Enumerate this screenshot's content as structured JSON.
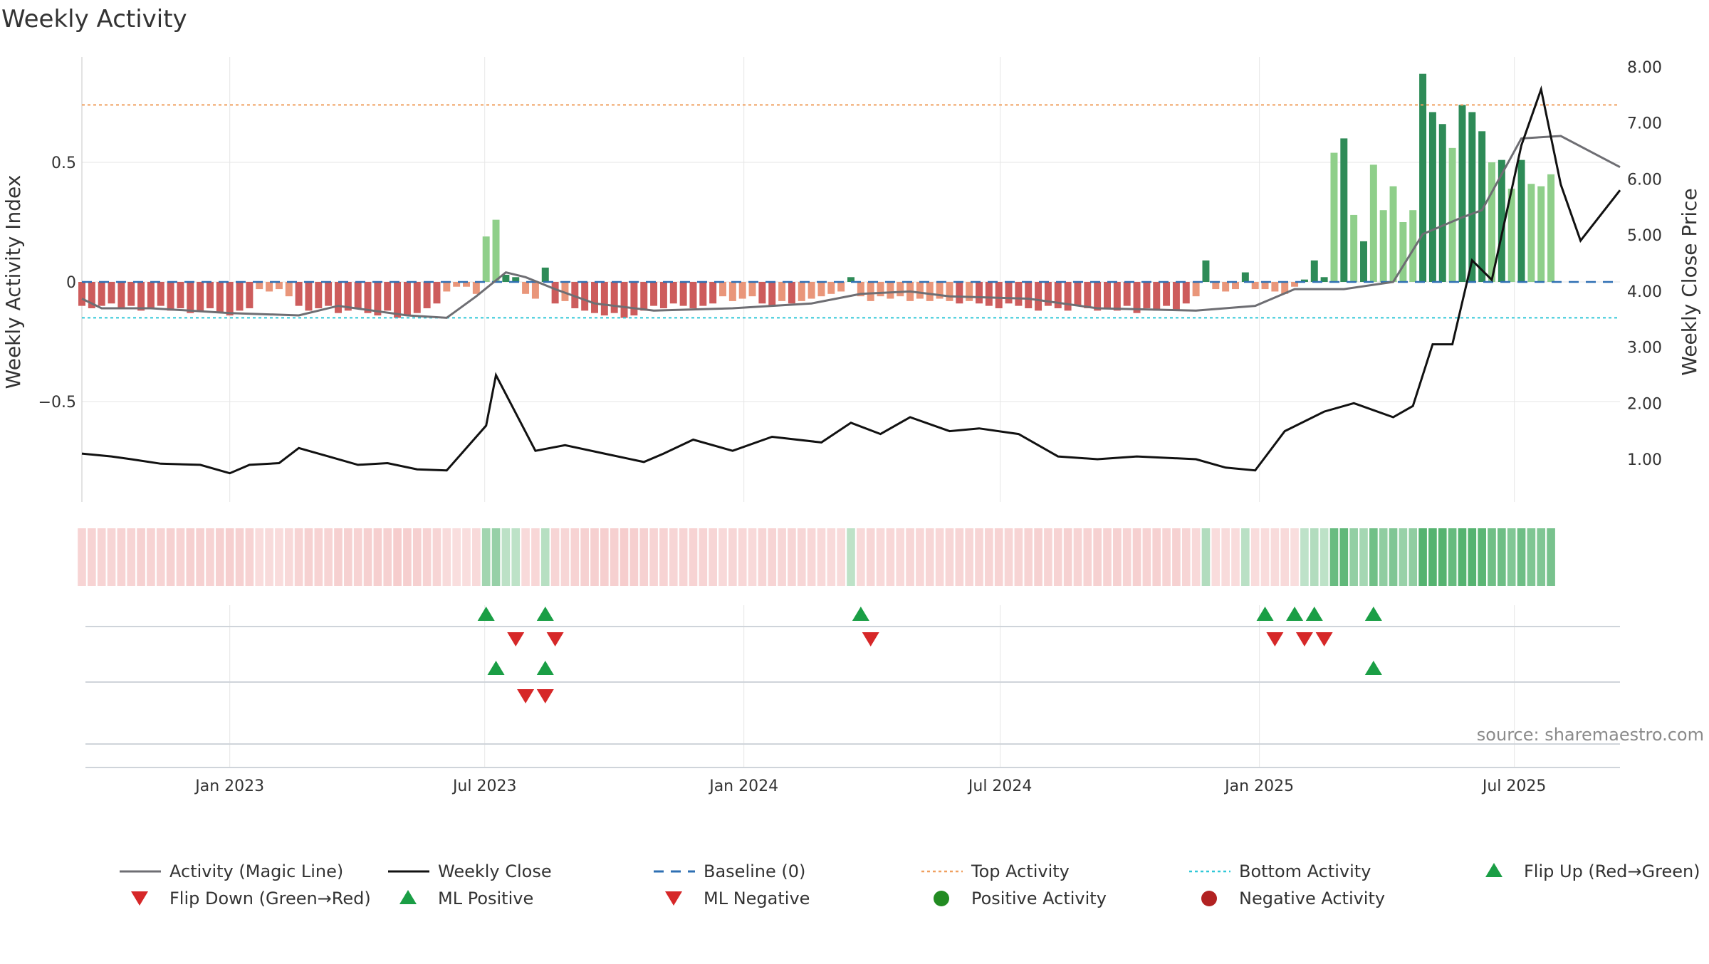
{
  "title": "Weekly Activity",
  "source_note": "source: sharemaestro.com",
  "colors": {
    "text": "#333333",
    "grid": "#e6e6e6",
    "magic_line": "#6e6e73",
    "close_line": "#111111",
    "baseline": "#2e6fb3",
    "top_line": "#f0a060",
    "bottom_line": "#30c8d8",
    "pos_strong": "#2e8b57",
    "pos_mid": "#5fb36a",
    "pos_light": "#8fcf8a",
    "neg_strong": "#cd5c5c",
    "neg_light": "#e9967a",
    "flip_up": "#1a9e45",
    "flip_down": "#d62728",
    "heat_pos": "#4caf68",
    "heat_neg": "#e57373"
  },
  "chart_data": {
    "type": "bar",
    "x_axis": {
      "type": "date",
      "range": [
        "2022-09-18",
        "2025-09-14"
      ],
      "tick_labels": [
        "Jan 2023",
        "Jul 2023",
        "Jan 2024",
        "Jul 2024",
        "Jan 2025",
        "Jul 2025"
      ],
      "tick_dates": [
        "2023-01-01",
        "2023-07-01",
        "2024-01-01",
        "2024-07-01",
        "2025-01-01",
        "2025-07-01"
      ]
    },
    "y_left": {
      "label": "Weekly Activity Index",
      "range": [
        -0.95,
        0.95
      ],
      "ticks": [
        0.5,
        0,
        -0.5
      ],
      "tick_labels": [
        "0.5",
        "0",
        "−0.5"
      ]
    },
    "y_right": {
      "label": "Weekly Close Price",
      "range": [
        0.2,
        8.2
      ],
      "ticks": [
        1,
        2,
        3,
        4,
        5,
        6,
        7,
        8
      ],
      "tick_labels": [
        "1.00",
        "2.00",
        "3.00",
        "4.00",
        "5.00",
        "6.00",
        "7.00",
        "8.00"
      ]
    },
    "reference_lines": {
      "baseline": 0,
      "top_activity": 0.74,
      "bottom_activity": -0.15
    },
    "legend": {
      "placement": "bottom",
      "entries": [
        "Activity (Magic Line)",
        "Weekly Close",
        "Baseline (0)",
        "Top Activity",
        "Bottom Activity",
        "Flip Up (Red→Green)",
        "Flip Down (Green→Red)",
        "ML Positive",
        "ML Negative",
        "Positive Activity",
        "Negative Activity"
      ]
    },
    "series": [
      {
        "name": "Weekly Activity",
        "x_start": "2022-09-18",
        "interval_days": 7,
        "values": [
          -0.1,
          -0.11,
          -0.1,
          -0.09,
          -0.11,
          -0.1,
          -0.12,
          -0.11,
          -0.1,
          -0.12,
          -0.11,
          -0.13,
          -0.12,
          -0.11,
          -0.13,
          -0.14,
          -0.12,
          -0.11,
          -0.03,
          -0.04,
          -0.03,
          -0.06,
          -0.1,
          -0.12,
          -0.11,
          -0.1,
          -0.13,
          -0.12,
          -0.11,
          -0.13,
          -0.14,
          -0.12,
          -0.15,
          -0.14,
          -0.13,
          -0.11,
          -0.09,
          -0.04,
          -0.02,
          -0.02,
          -0.05,
          0.19,
          0.26,
          0.03,
          0.02,
          -0.05,
          -0.07,
          0.06,
          -0.09,
          -0.08,
          -0.11,
          -0.12,
          -0.13,
          -0.14,
          -0.13,
          -0.15,
          -0.14,
          -0.12,
          -0.1,
          -0.11,
          -0.09,
          -0.1,
          -0.11,
          -0.1,
          -0.09,
          -0.06,
          -0.08,
          -0.07,
          -0.06,
          -0.09,
          -0.1,
          -0.08,
          -0.09,
          -0.08,
          -0.07,
          -0.06,
          -0.05,
          -0.04,
          0.02,
          -0.06,
          -0.08,
          -0.06,
          -0.07,
          -0.06,
          -0.08,
          -0.07,
          -0.08,
          -0.07,
          -0.08,
          -0.09,
          -0.08,
          -0.09,
          -0.1,
          -0.11,
          -0.09,
          -0.1,
          -0.11,
          -0.12,
          -0.1,
          -0.11,
          -0.12,
          -0.1,
          -0.11,
          -0.12,
          -0.11,
          -0.12,
          -0.1,
          -0.13,
          -0.11,
          -0.12,
          -0.1,
          -0.12,
          -0.09,
          -0.06,
          0.09,
          -0.03,
          -0.04,
          -0.03,
          0.04,
          -0.03,
          -0.03,
          -0.04,
          -0.05,
          -0.02,
          0.01,
          0.09,
          0.02,
          0.54,
          0.6,
          0.28,
          0.17,
          0.49,
          0.3,
          0.4,
          0.25,
          0.3,
          0.87,
          0.71,
          0.66,
          0.56,
          0.74,
          0.71,
          0.63,
          0.5,
          0.51,
          0.39,
          0.51,
          0.41,
          0.4,
          0.45
        ]
      },
      {
        "name": "Activity (Magic Line)",
        "points": [
          [
            "2022-09-18",
            -0.07
          ],
          [
            "2022-10-02",
            -0.11
          ],
          [
            "2022-11-06",
            -0.11
          ],
          [
            "2023-01-01",
            -0.13
          ],
          [
            "2023-02-19",
            -0.14
          ],
          [
            "2023-03-19",
            -0.1
          ],
          [
            "2023-05-07",
            -0.14
          ],
          [
            "2023-06-04",
            -0.15
          ],
          [
            "2023-06-25",
            -0.06
          ],
          [
            "2023-07-16",
            0.04
          ],
          [
            "2023-07-30",
            0.02
          ],
          [
            "2023-08-20",
            -0.03
          ],
          [
            "2023-09-17",
            -0.09
          ],
          [
            "2023-10-29",
            -0.12
          ],
          [
            "2023-12-24",
            -0.11
          ],
          [
            "2024-02-18",
            -0.09
          ],
          [
            "2024-03-24",
            -0.05
          ],
          [
            "2024-04-28",
            -0.04
          ],
          [
            "2024-05-26",
            -0.06
          ],
          [
            "2024-07-21",
            -0.07
          ],
          [
            "2024-09-08",
            -0.11
          ],
          [
            "2024-11-17",
            -0.12
          ],
          [
            "2024-12-29",
            -0.1
          ],
          [
            "2025-01-26",
            -0.03
          ],
          [
            "2025-03-02",
            -0.03
          ],
          [
            "2025-04-06",
            0.0
          ],
          [
            "2025-04-27",
            0.2
          ],
          [
            "2025-05-25",
            0.27
          ],
          [
            "2025-06-08",
            0.3
          ],
          [
            "2025-07-06",
            0.6
          ],
          [
            "2025-08-03",
            0.61
          ],
          [
            "2025-09-14",
            0.48
          ]
        ]
      },
      {
        "name": "Weekly Close",
        "points": [
          [
            "2022-09-18",
            1.1
          ],
          [
            "2022-10-09",
            1.05
          ],
          [
            "2022-10-23",
            1.0
          ],
          [
            "2022-11-13",
            0.92
          ],
          [
            "2022-12-11",
            0.9
          ],
          [
            "2023-01-01",
            0.75
          ],
          [
            "2023-01-15",
            0.9
          ],
          [
            "2023-02-05",
            0.93
          ],
          [
            "2023-02-19",
            1.2
          ],
          [
            "2023-03-12",
            1.05
          ],
          [
            "2023-04-02",
            0.9
          ],
          [
            "2023-04-23",
            0.93
          ],
          [
            "2023-05-14",
            0.82
          ],
          [
            "2023-06-04",
            0.8
          ],
          [
            "2023-06-18",
            1.2
          ],
          [
            "2023-07-02",
            1.6
          ],
          [
            "2023-07-09",
            2.5
          ],
          [
            "2023-08-06",
            1.15
          ],
          [
            "2023-08-27",
            1.25
          ],
          [
            "2023-09-24",
            1.1
          ],
          [
            "2023-10-22",
            0.95
          ],
          [
            "2023-11-05",
            1.1
          ],
          [
            "2023-11-26",
            1.35
          ],
          [
            "2023-12-24",
            1.15
          ],
          [
            "2024-01-21",
            1.4
          ],
          [
            "2024-02-25",
            1.3
          ],
          [
            "2024-03-17",
            1.65
          ],
          [
            "2024-04-07",
            1.45
          ],
          [
            "2024-04-28",
            1.75
          ],
          [
            "2024-05-26",
            1.5
          ],
          [
            "2024-06-16",
            1.55
          ],
          [
            "2024-07-14",
            1.45
          ],
          [
            "2024-08-11",
            1.05
          ],
          [
            "2024-09-08",
            1.0
          ],
          [
            "2024-10-06",
            1.05
          ],
          [
            "2024-11-17",
            1.0
          ],
          [
            "2024-12-08",
            0.85
          ],
          [
            "2024-12-29",
            0.8
          ],
          [
            "2025-01-19",
            1.5
          ],
          [
            "2025-02-16",
            1.85
          ],
          [
            "2025-03-09",
            2.0
          ],
          [
            "2025-04-06",
            1.75
          ],
          [
            "2025-04-20",
            1.95
          ],
          [
            "2025-05-04",
            3.05
          ],
          [
            "2025-05-18",
            3.05
          ],
          [
            "2025-06-01",
            4.55
          ],
          [
            "2025-06-15",
            4.2
          ],
          [
            "2025-07-06",
            6.6
          ],
          [
            "2025-07-20",
            7.6
          ],
          [
            "2025-08-03",
            5.9
          ],
          [
            "2025-08-17",
            4.9
          ],
          [
            "2025-09-14",
            5.8
          ]
        ]
      },
      {
        "name": "Flip Up (Red→Green)",
        "dates": [
          "2023-07-02",
          "2023-08-13",
          "2024-03-24",
          "2025-01-05",
          "2025-01-26",
          "2025-02-09",
          "2025-03-23"
        ]
      },
      {
        "name": "Flip Down (Green→Red)",
        "dates": [
          "2023-07-23",
          "2023-08-20",
          "2024-03-31",
          "2025-01-12",
          "2025-02-02",
          "2025-02-16"
        ]
      },
      {
        "name": "ML Positive",
        "dates": [
          "2023-07-09",
          "2023-08-13",
          "2025-03-23"
        ]
      },
      {
        "name": "ML Negative",
        "dates": [
          "2023-07-30",
          "2023-08-13"
        ]
      }
    ]
  }
}
